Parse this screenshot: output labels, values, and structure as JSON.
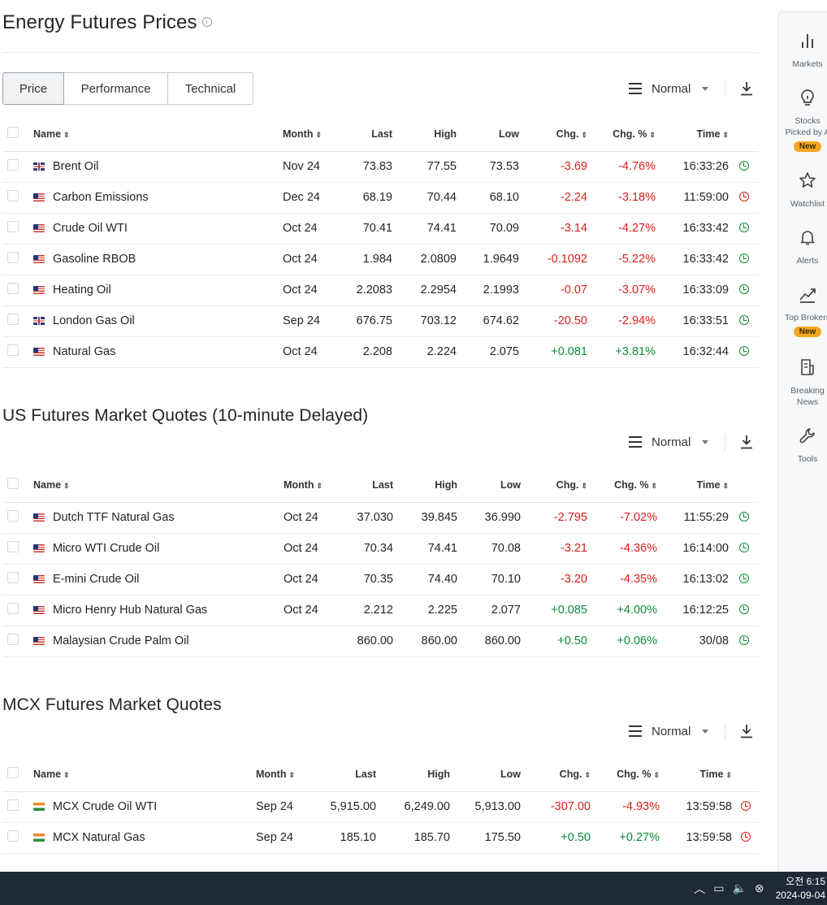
{
  "sections": {
    "energy": {
      "title": "Energy Futures Prices",
      "tabs": [
        "Price",
        "Performance",
        "Technical"
      ],
      "view": "Normal",
      "headers": {
        "name": "Name",
        "month": "Month",
        "last": "Last",
        "high": "High",
        "low": "Low",
        "chg": "Chg.",
        "chg_pct": "Chg. %",
        "time": "Time"
      },
      "rows": [
        {
          "flag": "uk",
          "name": "Brent Oil",
          "month": "Nov 24",
          "last": "73.83",
          "high": "77.55",
          "low": "73.53",
          "chg": "-3.69",
          "chg_pct": "-4.76%",
          "time": "16:33:26",
          "status": "open",
          "dir": "neg"
        },
        {
          "flag": "us",
          "name": "Carbon Emissions",
          "month": "Dec 24",
          "last": "68.19",
          "high": "70.44",
          "low": "68.10",
          "chg": "-2.24",
          "chg_pct": "-3.18%",
          "time": "11:59:00",
          "status": "closed",
          "dir": "neg"
        },
        {
          "flag": "us",
          "name": "Crude Oil WTI",
          "month": "Oct 24",
          "last": "70.41",
          "high": "74.41",
          "low": "70.09",
          "chg": "-3.14",
          "chg_pct": "-4.27%",
          "time": "16:33:42",
          "status": "open",
          "dir": "neg"
        },
        {
          "flag": "us",
          "name": "Gasoline RBOB",
          "month": "Oct 24",
          "last": "1.984",
          "high": "2.0809",
          "low": "1.9649",
          "chg": "-0.1092",
          "chg_pct": "-5.22%",
          "time": "16:33:42",
          "status": "open",
          "dir": "neg"
        },
        {
          "flag": "us",
          "name": "Heating Oil",
          "month": "Oct 24",
          "last": "2.2083",
          "high": "2.2954",
          "low": "2.1993",
          "chg": "-0.07",
          "chg_pct": "-3.07%",
          "time": "16:33:09",
          "status": "open",
          "dir": "neg"
        },
        {
          "flag": "uk",
          "name": "London Gas Oil",
          "month": "Sep 24",
          "last": "676.75",
          "high": "703.12",
          "low": "674.62",
          "chg": "-20.50",
          "chg_pct": "-2.94%",
          "time": "16:33:51",
          "status": "open",
          "dir": "neg"
        },
        {
          "flag": "us",
          "name": "Natural Gas",
          "month": "Oct 24",
          "last": "2.208",
          "high": "2.224",
          "low": "2.075",
          "chg": "+0.081",
          "chg_pct": "+3.81%",
          "time": "16:32:44",
          "status": "open",
          "dir": "pos"
        }
      ]
    },
    "us": {
      "title": "US Futures Market Quotes (10-minute Delayed)",
      "view": "Normal",
      "headers": {
        "name": "Name",
        "month": "Month",
        "last": "Last",
        "high": "High",
        "low": "Low",
        "chg": "Chg.",
        "chg_pct": "Chg. %",
        "time": "Time"
      },
      "rows": [
        {
          "flag": "us",
          "name": "Dutch TTF Natural Gas",
          "month": "Oct 24",
          "last": "37.030",
          "high": "39.845",
          "low": "36.990",
          "chg": "-2.795",
          "chg_pct": "-7.02%",
          "time": "11:55:29",
          "status": "open",
          "dir": "neg"
        },
        {
          "flag": "us",
          "name": "Micro WTI Crude Oil",
          "month": "Oct 24",
          "last": "70.34",
          "high": "74.41",
          "low": "70.08",
          "chg": "-3.21",
          "chg_pct": "-4.36%",
          "time": "16:14:00",
          "status": "open",
          "dir": "neg"
        },
        {
          "flag": "us",
          "name": "E-mini Crude Oil",
          "month": "Oct 24",
          "last": "70.35",
          "high": "74.40",
          "low": "70.10",
          "chg": "-3.20",
          "chg_pct": "-4.35%",
          "time": "16:13:02",
          "status": "open",
          "dir": "neg"
        },
        {
          "flag": "us",
          "name": "Micro Henry Hub Natural Gas",
          "month": "Oct 24",
          "last": "2.212",
          "high": "2.225",
          "low": "2.077",
          "chg": "+0.085",
          "chg_pct": "+4.00%",
          "time": "16:12:25",
          "status": "open",
          "dir": "pos"
        },
        {
          "flag": "us",
          "name": "Malaysian Crude Palm Oil",
          "month": "",
          "last": "860.00",
          "high": "860.00",
          "low": "860.00",
          "chg": "+0.50",
          "chg_pct": "+0.06%",
          "time": "30/08",
          "status": "open",
          "dir": "pos"
        }
      ]
    },
    "mcx": {
      "title": "MCX Futures Market Quotes",
      "view": "Normal",
      "headers": {
        "name": "Name",
        "month": "Month",
        "last": "Last",
        "high": "High",
        "low": "Low",
        "chg": "Chg.",
        "chg_pct": "Chg. %",
        "time": "Time"
      },
      "rows": [
        {
          "flag": "in",
          "name": "MCX Crude Oil WTI",
          "month": "Sep 24",
          "last": "5,915.00",
          "high": "6,249.00",
          "low": "5,913.00",
          "chg": "-307.00",
          "chg_pct": "-4.93%",
          "time": "13:59:58",
          "status": "closed",
          "dir": "neg"
        },
        {
          "flag": "in",
          "name": "MCX Natural Gas",
          "month": "Sep 24",
          "last": "185.10",
          "high": "185.70",
          "low": "175.50",
          "chg": "+0.50",
          "chg_pct": "+0.27%",
          "time": "13:59:58",
          "status": "closed",
          "dir": "pos"
        }
      ]
    }
  },
  "sidebar": {
    "items": [
      {
        "icon": "bar-chart-icon",
        "label": "Markets",
        "badge": ""
      },
      {
        "icon": "lightbulb-icon",
        "label": "Stocks Picked by AI",
        "label_lines": [
          "Stocks",
          "Picked by A"
        ],
        "badge": "New"
      },
      {
        "icon": "star-icon",
        "label": "Watchlist",
        "badge": ""
      },
      {
        "icon": "bell-icon",
        "label": "Alerts",
        "badge": ""
      },
      {
        "icon": "trend-up-icon",
        "label_lines": [
          "Top Brokers"
        ],
        "badge": "New"
      },
      {
        "icon": "news-icon",
        "label_lines": [
          "Breaking",
          "News"
        ],
        "badge": ""
      },
      {
        "icon": "wrench-icon",
        "label": "Tools",
        "badge": ""
      }
    ]
  },
  "taskbar": {
    "time": "오전 6:15",
    "date": "2024-09-04"
  },
  "colors": {
    "negative": "#d91e18",
    "positive": "#0b8a3a",
    "badge": "#f5a623",
    "taskbar": "#202a36"
  }
}
